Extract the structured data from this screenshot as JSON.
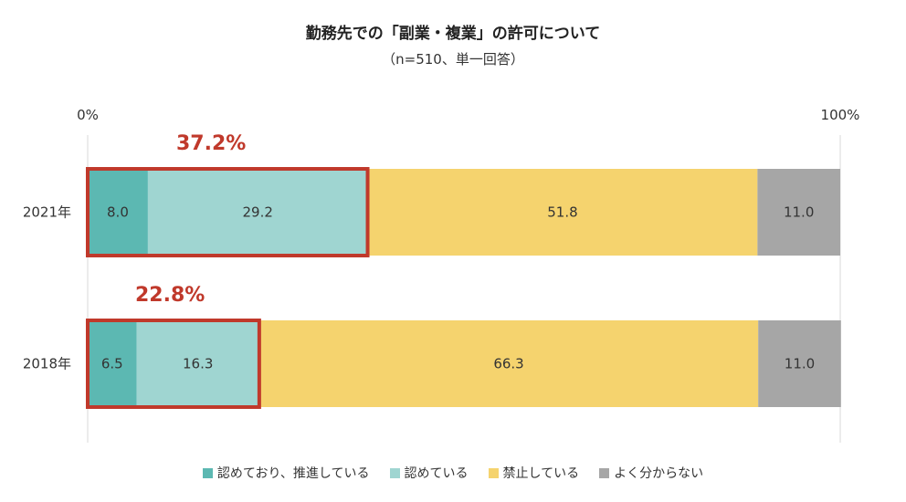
{
  "chart_data": {
    "type": "bar",
    "orientation": "horizontal-stacked-100",
    "title": "勤務先での「副業・複業」の許可について",
    "subtitle": "（n=510、単一回答）",
    "axis_labels": {
      "min": "0%",
      "max": "100%"
    },
    "xlim": [
      0,
      100
    ],
    "categories": [
      "2021年",
      "2018年"
    ],
    "series": [
      {
        "name": "認めており、推進している",
        "color": "#5cb8b2",
        "values": [
          8.0,
          6.5
        ],
        "labels": [
          "8.0",
          "6.5"
        ]
      },
      {
        "name": "認めている",
        "color": "#9fd5d1",
        "values": [
          29.2,
          16.3
        ],
        "labels": [
          "29.2",
          "16.3"
        ]
      },
      {
        "name": "禁止している",
        "color": "#f5d36e",
        "values": [
          51.8,
          66.3
        ],
        "labels": [
          "51.8",
          "66.3"
        ]
      },
      {
        "name": "よく分からない",
        "color": "#a6a6a6",
        "values": [
          11.0,
          11.0
        ],
        "labels": [
          "11.0",
          "11.0"
        ]
      }
    ],
    "highlights": [
      {
        "category": "2021年",
        "label": "37.2%",
        "value": 37.2
      },
      {
        "category": "2018年",
        "label": "22.8%",
        "value": 22.8
      }
    ],
    "highlight_color": "#c0392b",
    "legend_position": "bottom",
    "grid": false
  }
}
